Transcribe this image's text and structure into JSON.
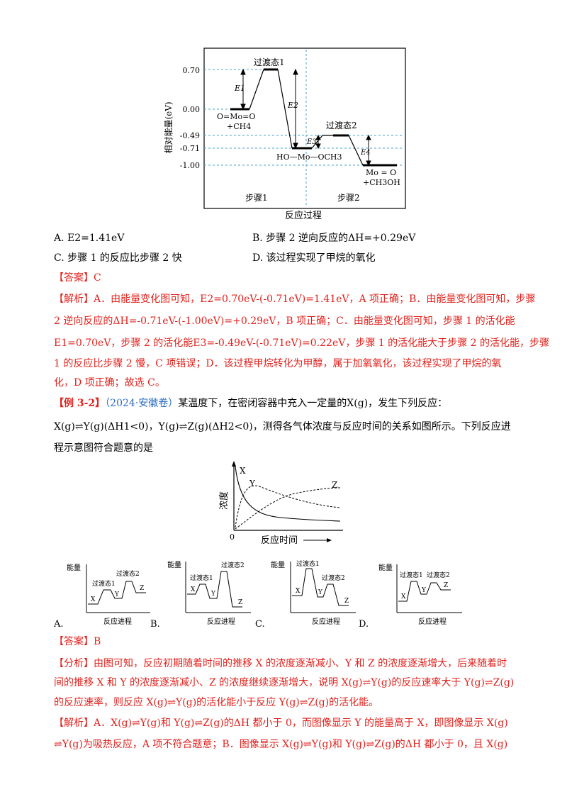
{
  "diagram1": {
    "y_axis_label": "相对能量(eV)",
    "x_axis_label": "反应过程",
    "y_ticks": [
      "0.70",
      "0.00",
      "-0.49",
      "-0.71",
      "-1.00"
    ],
    "ts1": "过渡态1",
    "ts2": "过渡态2",
    "e1": "E1",
    "e2": "E2",
    "e3": "E3",
    "e4": "E4",
    "reactant_line1": "O=Mo=O",
    "reactant_line2": "+CH4",
    "intermediate": "HO—Mo—OCH3",
    "product_line1": "Mo = O",
    "product_line2": "+CH3OH",
    "step1": "步骤1",
    "step2": "步骤2"
  },
  "q1_options": {
    "a": "A.  E2=1.41eV",
    "b": "B.  步骤 2 逆向反应的ΔH=+0.29eV",
    "c": "C.  步骤 1 的反应比步骤 2 快",
    "d": "D.  该过程实现了甲烷的氧化"
  },
  "q1_answer": "【答案】C",
  "q1_analysis": [
    "【解析】A．由能量变化图可知，E2=0.70eV-(-0.71eV)=1.41eV，A 项正确；B．由能量变化图可知，步骤",
    "2 逆向反应的ΔH=-0.71eV-(-1.00eV)=+0.29eV，B 项正确；C．由能量变化图可知，步骤 1 的活化能",
    "E1=0.70eV，步骤 2 的活化能E3=-0.49eV-(-0.71eV)=0.22eV，步骤 1 的活化能大于步骤 2 的活化能，步骤",
    "1 的反应比步骤 2 慢，C 项错误；D．该过程甲烷转化为甲醇，属于加氧氧化，该过程实现了甲烷的氧",
    "化，D 项正确；故选 C。"
  ],
  "example": {
    "tag": "【例 3-2】",
    "source": "（2024·安徽卷）",
    "stem1": "某温度下，在密闭容器中充入一定量的X(g)，发生下列反应：",
    "stem2": "X(g)⇌Y(g)(ΔH1<0)，Y(g)⇌Z(g)(ΔH2<0)，测得各气体浓度与反应时间的关系如图所示。下列反应进",
    "stem3": "程示意图符合题意的是"
  },
  "diagram2": {
    "y_label": "浓度",
    "x_label": "反应时间",
    "origin": "0",
    "label_x": "X",
    "label_y": "Y",
    "label_z": "Z"
  },
  "choices": [
    {
      "letter": "A.",
      "ylabel": "能量",
      "xlabel": "反应进程",
      "ts1": "过渡态1",
      "ts2": "过渡态2",
      "x": "X",
      "y": "Y",
      "z": "Z"
    },
    {
      "letter": "B.",
      "ylabel": "能量",
      "xlabel": "反应进程",
      "ts1": "过渡态1",
      "ts2": "过渡态2",
      "x": "X",
      "y": "Y",
      "z": "Z"
    },
    {
      "letter": "C.",
      "ylabel": "能量",
      "xlabel": "反应进程",
      "ts1": "过渡态1",
      "ts2": "过渡态2",
      "x": "X",
      "y": "Y",
      "z": "Z"
    },
    {
      "letter": "D.",
      "ylabel": "能量",
      "xlabel": "反应进程",
      "ts1": "过渡态1",
      "ts2": "过渡态2",
      "x": "X",
      "y": "Y",
      "z": "Z"
    }
  ],
  "q2_answer": "【答案】B",
  "q2_explain": [
    "【分析】由图可知，反应初期随着时间的推移 X 的浓度逐渐减小、Y 和 Z 的浓度逐渐增大，后来随着时",
    "间的推移 X 和 Y 的浓度逐渐减小、Z 的浓度继续逐渐增大，说明 X(g)⇌Y(g)的反应速率大于 Y(g)⇌Z(g)",
    "的反应速率，则反应 X(g)⇌Y(g)的活化能小于反应 Y(g)⇌Z(g)的活化能。"
  ],
  "q2_analysis": [
    "【解析】A．X(g)⇌Y(g)和 Y(g)⇌Z(g)的ΔH 都小于 0，而图像显示 Y 的能量高于 X，即图像显示 X(g)",
    "⇌Y(g)为吸热反应，A 项不符合题意；B．图像显示 X(g)⇌Y(g)和 Y(g)⇌Z(g)的ΔH 都小于 0，且 X(g)"
  ],
  "colors": {
    "red": "#e0201b",
    "blue": "#2b6cc4",
    "dash": "#4aa3d0"
  }
}
